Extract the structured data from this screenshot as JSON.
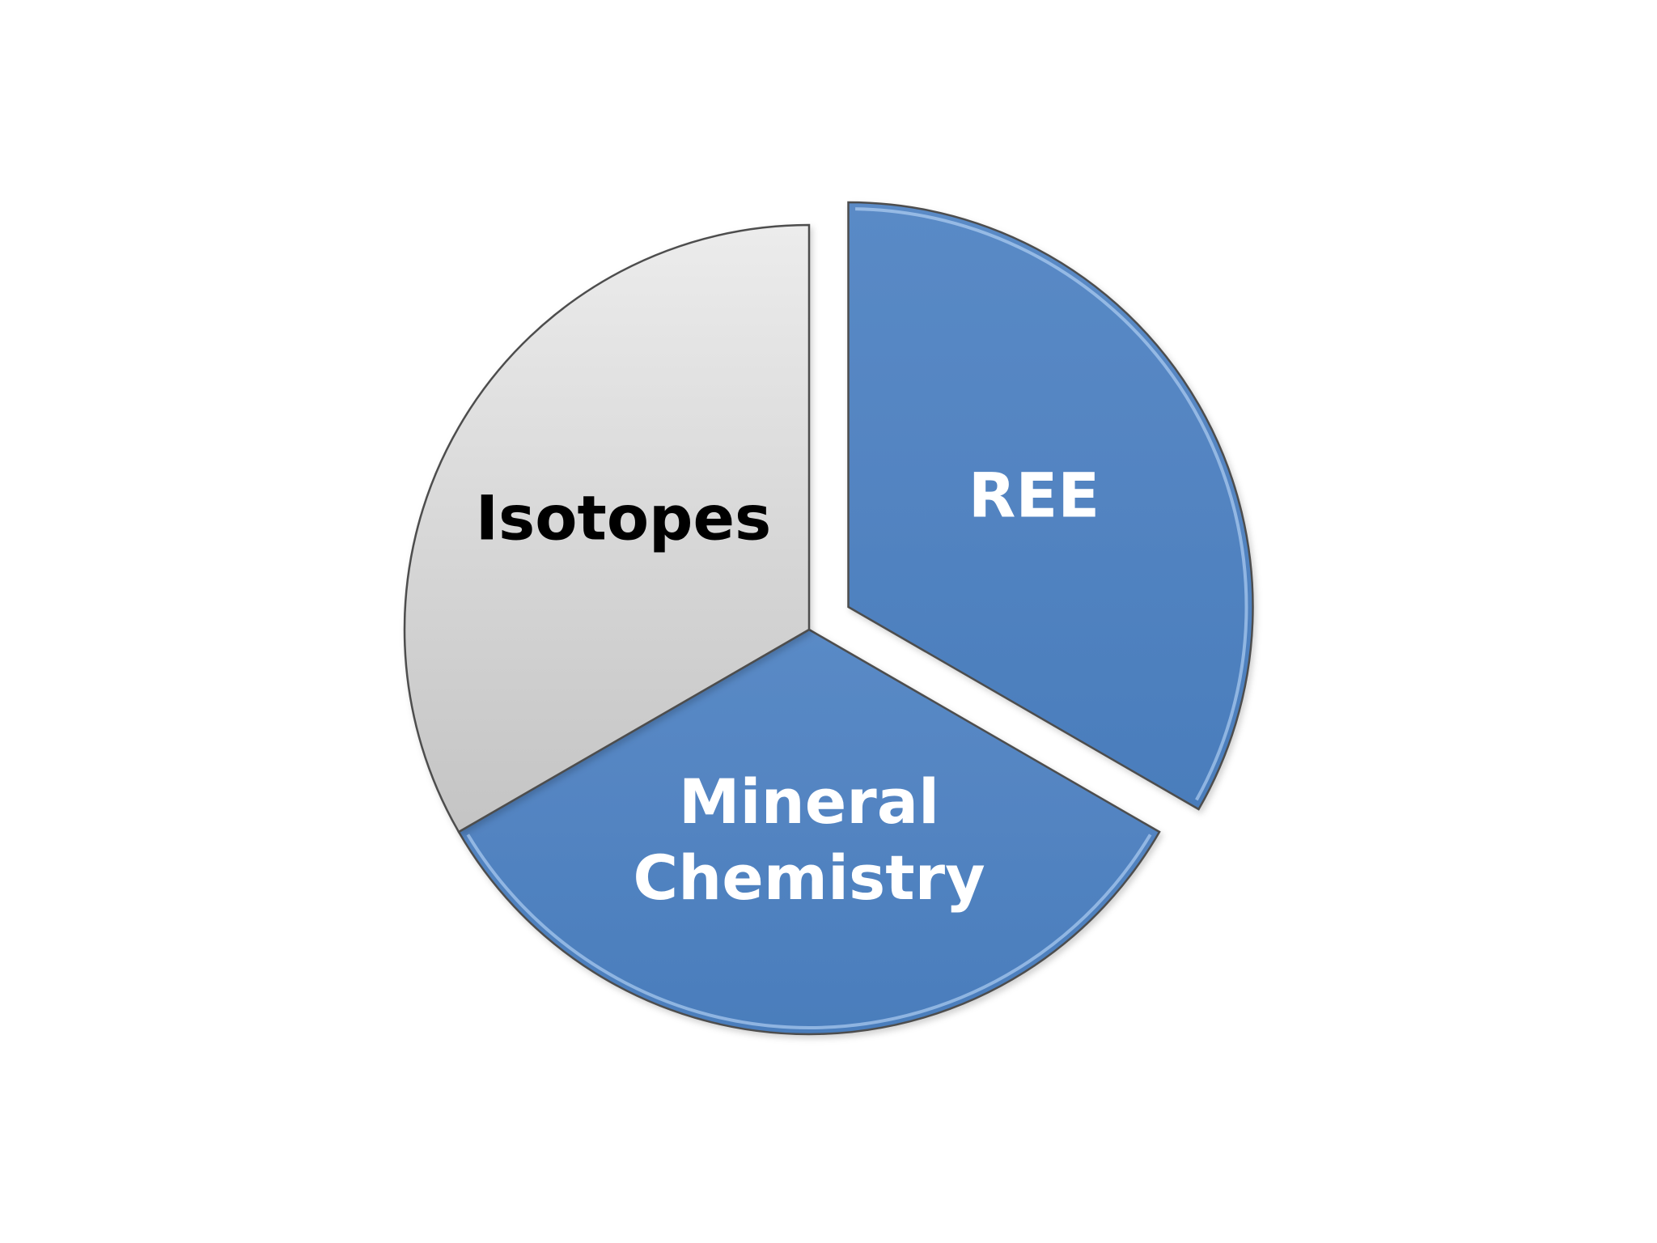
{
  "chart_data": {
    "type": "pie",
    "title": "",
    "exploded": [
      "REE"
    ],
    "slices": [
      {
        "label": "REE",
        "value": 1,
        "color": "#4f81bd",
        "text_color": "#ffffff",
        "label_lines": [
          "REE"
        ]
      },
      {
        "label": "Mineral Chemistry",
        "value": 1,
        "color": "#4f81bd",
        "text_color": "#ffffff",
        "label_lines": [
          "Mineral",
          "Chemistry"
        ]
      },
      {
        "label": "Isotopes",
        "value": 1,
        "color": "#d9d9d9",
        "text_color": "#000000",
        "label_lines": [
          "Isotopes"
        ]
      }
    ]
  }
}
